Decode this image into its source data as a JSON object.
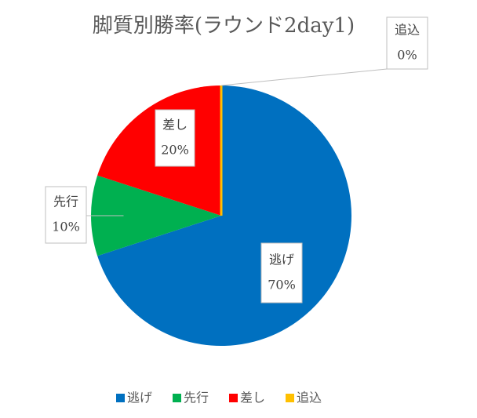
{
  "chart_data": {
    "type": "pie",
    "title": "脚質別勝率(ラウンド2day1)",
    "categories": [
      "逃げ",
      "先行",
      "差し",
      "追込"
    ],
    "values": [
      70,
      10,
      20,
      0
    ],
    "value_labels": [
      "70%",
      "10%",
      "20%",
      "0%"
    ],
    "colors": [
      "#0070c0",
      "#00b050",
      "#ff0000",
      "#ffc000"
    ],
    "legend": "bottom"
  }
}
